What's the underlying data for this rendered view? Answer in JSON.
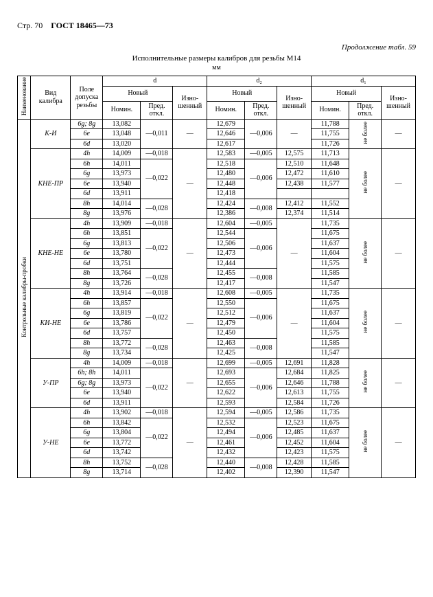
{
  "page_label": "Стр. 70",
  "gost": "ГОСТ 18465—73",
  "continuation": "Продолжение табл. 59",
  "title": "Исполнительные размеры калибров для резьбы М14",
  "unit": "мм",
  "side_label": "Контрольные калибры-пробки",
  "head": {
    "naim": "Наименование",
    "vid": "Вид калибра",
    "pole": "Поле допуска резьбы",
    "d": "d",
    "d2": "d₂",
    "d1": "d₁",
    "novy": "Новый",
    "izn": "Изно-шенный",
    "nomin": "Номин.",
    "pred": "Пред. откл.",
    "neb": "не более"
  },
  "groups": [
    {
      "name": "К-И",
      "rows": [
        {
          "t": "6g; 8g",
          "d": "13,082",
          "dp": "—0,011",
          "di": "—",
          "d2": "12,679",
          "d2p": "—0,006",
          "d2i": "—",
          "d1": "11,788",
          "d1neb": true,
          "d1i": "—"
        },
        {
          "t": "6e",
          "d": "13,048",
          "dp": "",
          "di": "",
          "d2": "12,646",
          "d2p": "",
          "d2i": "",
          "d1": "11,755",
          "d1neb": false,
          "d1i": ""
        },
        {
          "t": "6d",
          "d": "13,020",
          "dp": "",
          "di": "",
          "d2": "12,617",
          "d2p": "",
          "d2i": "",
          "d1": "11,726",
          "d1neb": false,
          "d1i": ""
        }
      ],
      "dp_spans": [
        [
          0,
          3,
          "—0,011"
        ]
      ],
      "d2p_spans": [
        [
          0,
          3,
          "—0,006"
        ]
      ],
      "d2i_spans": [
        [
          0,
          3,
          "—"
        ]
      ],
      "di_spans": [
        [
          0,
          3,
          "—"
        ]
      ],
      "d1i_spans": [
        [
          0,
          3,
          "—"
        ]
      ],
      "neb_span": [
        0,
        3
      ]
    },
    {
      "name": "КНЕ-ПР",
      "rows": [
        {
          "t": "4h",
          "d": "14,009",
          "dp": "—0,018",
          "d2": "12,583",
          "d2p": "—0,005",
          "d2i": "12,575",
          "d1": "11,713"
        },
        {
          "t": "6h",
          "d": "14,011",
          "dp": "",
          "d2": "12,518",
          "d2p": "",
          "d2i": "12,510",
          "d1": "11,648"
        },
        {
          "t": "6g",
          "d": "13,973",
          "dp": "—0,022",
          "d2": "12,480",
          "d2p": "—0,006",
          "d2i": "12,472",
          "d1": "11,610"
        },
        {
          "t": "6e",
          "d": "13,940",
          "dp": "",
          "d2": "12,448",
          "d2p": "",
          "d2i": "12,438",
          "d1": "11,577"
        },
        {
          "t": "6d",
          "d": "13,911",
          "dp": "",
          "d2": "12,418",
          "d2p": "",
          "d2i": "",
          "d1": ""
        },
        {
          "t": "8h",
          "d": "14,014",
          "dp": "—0,028",
          "d2": "12,424",
          "d2p": "—0,008",
          "d2i": "12,412",
          "d1": "11,552"
        },
        {
          "t": "8g",
          "d": "13,976",
          "dp": "",
          "d2": "12,386",
          "d2p": "",
          "d2i": "12,374",
          "d1": "11,514"
        }
      ],
      "dp_spans": [
        [
          0,
          1,
          "—0,018"
        ],
        [
          1,
          4,
          "—0,022"
        ],
        [
          5,
          2,
          "—0,028"
        ]
      ],
      "d2p_spans": [
        [
          0,
          1,
          "—0,005"
        ],
        [
          1,
          4,
          "—0,006"
        ],
        [
          5,
          2,
          "—0,008"
        ]
      ],
      "di_spans": [
        [
          0,
          7,
          "—"
        ]
      ],
      "d1i_spans": [
        [
          0,
          7,
          "—"
        ]
      ],
      "neb_span": [
        0,
        7
      ]
    },
    {
      "name": "КНЕ-НЕ",
      "rows": [
        {
          "t": "4h",
          "d": "13,909",
          "dp": "—0,018",
          "d2": "12,604",
          "d2p": "—0,005",
          "d2i": "",
          "d1": "11,735"
        },
        {
          "t": "6h",
          "d": "13,851",
          "dp": "",
          "d2": "12,544",
          "d2p": "",
          "d2i": "",
          "d1": "11,675"
        },
        {
          "t": "6g",
          "d": "13,813",
          "dp": "—0,022",
          "d2": "12,506",
          "d2p": "—0,006",
          "d2i": "",
          "d1": "11,637"
        },
        {
          "t": "6e",
          "d": "13,780",
          "dp": "",
          "d2": "12,473",
          "d2p": "",
          "d2i": "",
          "d1": "11,604"
        },
        {
          "t": "6d",
          "d": "13,751",
          "dp": "",
          "d2": "12,444",
          "d2p": "",
          "d2i": "",
          "d1": "11,575"
        },
        {
          "t": "8h",
          "d": "13,764",
          "dp": "—0,028",
          "d2": "12,455",
          "d2p": "—0,008",
          "d2i": "",
          "d1": "11,585"
        },
        {
          "t": "8g",
          "d": "13,726",
          "dp": "",
          "d2": "12,417",
          "d2p": "",
          "d2i": "",
          "d1": "11,547"
        }
      ],
      "dp_spans": [
        [
          0,
          1,
          "—0,018"
        ],
        [
          1,
          4,
          "—0,022"
        ],
        [
          5,
          2,
          "—0,028"
        ]
      ],
      "d2p_spans": [
        [
          0,
          1,
          "—0,005"
        ],
        [
          1,
          4,
          "—0,006"
        ],
        [
          5,
          2,
          "—0,008"
        ]
      ],
      "d2i_spans": [
        [
          0,
          7,
          "—"
        ]
      ],
      "di_spans": [
        [
          0,
          7,
          "—"
        ]
      ],
      "d1i_spans": [
        [
          0,
          7,
          "—"
        ]
      ],
      "neb_span": [
        0,
        7
      ]
    },
    {
      "name": "КИ-НЕ",
      "rows": [
        {
          "t": "4h",
          "d": "13,914",
          "dp": "—0,018",
          "d2": "12,608",
          "d2p": "—0,005",
          "d2i": "",
          "d1": "11,735"
        },
        {
          "t": "6h",
          "d": "13,857",
          "dp": "",
          "d2": "12,550",
          "d2p": "",
          "d2i": "",
          "d1": "11,675"
        },
        {
          "t": "6g",
          "d": "13,819",
          "dp": "—0,022",
          "d2": "12,512",
          "d2p": "—0,006",
          "d2i": "",
          "d1": "11,637"
        },
        {
          "t": "6e",
          "d": "13,786",
          "dp": "",
          "d2": "12,479",
          "d2p": "",
          "d2i": "",
          "d1": "11,604"
        },
        {
          "t": "6d",
          "d": "13,757",
          "dp": "",
          "d2": "12,450",
          "d2p": "",
          "d2i": "",
          "d1": "11,575"
        },
        {
          "t": "8h",
          "d": "13,772",
          "dp": "—0,028",
          "d2": "12,463",
          "d2p": "—0,008",
          "d2i": "",
          "d1": "11,585"
        },
        {
          "t": "8g",
          "d": "13,734",
          "dp": "",
          "d2": "12,425",
          "d2p": "",
          "d2i": "",
          "d1": "11,547"
        }
      ],
      "dp_spans": [
        [
          0,
          1,
          "—0,018"
        ],
        [
          1,
          4,
          "—0,022"
        ],
        [
          5,
          2,
          "—0,028"
        ]
      ],
      "d2p_spans": [
        [
          0,
          1,
          "—0,005"
        ],
        [
          1,
          4,
          "—0,006"
        ],
        [
          5,
          2,
          "—0,008"
        ]
      ],
      "d2i_spans": [
        [
          0,
          7,
          "—"
        ]
      ],
      "di_spans": [
        [
          0,
          7,
          "—"
        ]
      ],
      "d1i_spans": [
        [
          0,
          7,
          "—"
        ]
      ],
      "neb_span": [
        0,
        7
      ]
    },
    {
      "name": "У-ПР",
      "rows": [
        {
          "t": "4h",
          "d": "14,009",
          "dp": "—0,018",
          "d2": "12,699",
          "d2p": "—0,005",
          "d2i": "12,691",
          "d1": "11,828"
        },
        {
          "t": "6h; 8h",
          "d": "14,011",
          "dp": "",
          "d2": "12,693",
          "d2p": "",
          "d2i": "12,684",
          "d1": "11,825"
        },
        {
          "t": "6g; 8g",
          "d": "13,973",
          "dp": "—0,022",
          "d2": "12,655",
          "d2p": "—0,006",
          "d2i": "12,646",
          "d1": "11,788"
        },
        {
          "t": "6e",
          "d": "13,940",
          "dp": "",
          "d2": "12,622",
          "d2p": "",
          "d2i": "12,613",
          "d1": "11,755"
        },
        {
          "t": "6d",
          "d": "13,911",
          "dp": "",
          "d2": "12,593",
          "d2p": "",
          "d2i": "12,584",
          "d1": "11,726"
        }
      ],
      "dp_spans": [
        [
          0,
          1,
          "—0,018"
        ],
        [
          1,
          4,
          "—0,022"
        ]
      ],
      "d2p_spans": [
        [
          0,
          1,
          "—0,005"
        ],
        [
          1,
          4,
          "—0,006"
        ]
      ],
      "di_spans": [
        [
          0,
          5,
          "—"
        ]
      ],
      "d1i_spans": [
        [
          0,
          5,
          "—"
        ]
      ],
      "neb_span": [
        0,
        5
      ]
    },
    {
      "name": "У-НЕ",
      "rows": [
        {
          "t": "4h",
          "d": "13,902",
          "dp": "—0,018",
          "d2": "12,594",
          "d2p": "—0,005",
          "d2i": "12,586",
          "d1": "11,735"
        },
        {
          "t": "6h",
          "d": "13,842",
          "dp": "",
          "d2": "12,532",
          "d2p": "",
          "d2i": "12,523",
          "d1": "11,675"
        },
        {
          "t": "6g",
          "d": "13,804",
          "dp": "—0,022",
          "d2": "12,494",
          "d2p": "—0,006",
          "d2i": "12,485",
          "d1": "11,637"
        },
        {
          "t": "6e",
          "d": "13,772",
          "dp": "",
          "d2": "12,461",
          "d2p": "",
          "d2i": "12,452",
          "d1": "11,604"
        },
        {
          "t": "6d",
          "d": "13,742",
          "dp": "",
          "d2": "12,432",
          "d2p": "",
          "d2i": "12,423",
          "d1": "11,575"
        },
        {
          "t": "8h",
          "d": "13,752",
          "dp": "—0,028",
          "d2": "12,440",
          "d2p": "—0,008",
          "d2i": "12,428",
          "d1": "11,585"
        },
        {
          "t": "8g",
          "d": "13,714",
          "dp": "",
          "d2": "12,402",
          "d2p": "",
          "d2i": "12,390",
          "d1": "11,547"
        }
      ],
      "dp_spans": [
        [
          0,
          1,
          "—0,018"
        ],
        [
          1,
          4,
          "—0,022"
        ],
        [
          5,
          2,
          "—0,028"
        ]
      ],
      "d2p_spans": [
        [
          0,
          1,
          "—0,005"
        ],
        [
          1,
          4,
          "—0,006"
        ],
        [
          5,
          2,
          "—0,008"
        ]
      ],
      "di_spans": [
        [
          0,
          7,
          "—"
        ]
      ],
      "d1i_spans": [
        [
          0,
          7,
          "—"
        ]
      ],
      "neb_span": [
        0,
        7
      ]
    }
  ]
}
